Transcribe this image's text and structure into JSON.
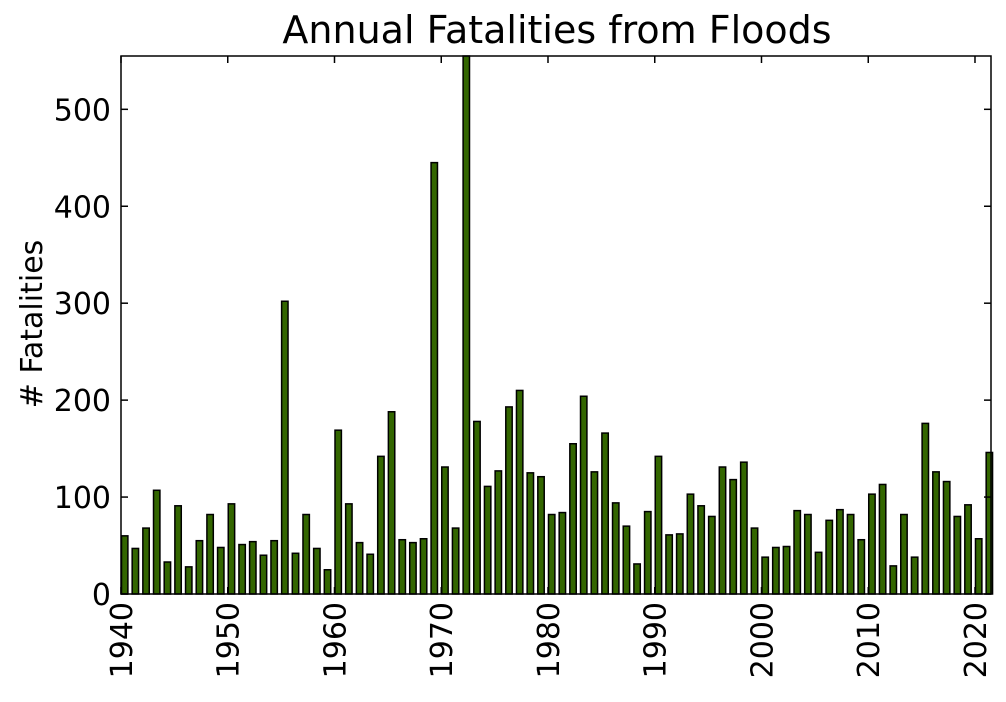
{
  "chart_data": {
    "type": "bar",
    "title": "Annual Fatalities from Floods",
    "xlabel": "",
    "ylabel": "# Fatalities",
    "x": [
      1940,
      1941,
      1942,
      1943,
      1944,
      1945,
      1946,
      1947,
      1948,
      1949,
      1950,
      1951,
      1952,
      1953,
      1954,
      1955,
      1956,
      1957,
      1958,
      1959,
      1960,
      1961,
      1962,
      1963,
      1964,
      1965,
      1966,
      1967,
      1968,
      1969,
      1970,
      1971,
      1972,
      1973,
      1974,
      1975,
      1976,
      1977,
      1978,
      1979,
      1980,
      1981,
      1982,
      1983,
      1984,
      1985,
      1986,
      1987,
      1988,
      1989,
      1990,
      1991,
      1992,
      1993,
      1994,
      1995,
      1996,
      1997,
      1998,
      1999,
      2000,
      2001,
      2002,
      2003,
      2004,
      2005,
      2006,
      2007,
      2008,
      2009,
      2010,
      2011,
      2012,
      2013,
      2014,
      2015,
      2016,
      2017,
      2018,
      2019,
      2020,
      2021
    ],
    "values": [
      60,
      47,
      68,
      107,
      33,
      91,
      28,
      55,
      82,
      48,
      93,
      51,
      54,
      40,
      55,
      302,
      42,
      82,
      47,
      25,
      169,
      93,
      53,
      41,
      142,
      188,
      56,
      53,
      57,
      445,
      131,
      68,
      555,
      178,
      111,
      127,
      193,
      210,
      125,
      121,
      82,
      84,
      155,
      204,
      126,
      166,
      94,
      70,
      31,
      85,
      142,
      61,
      62,
      103,
      91,
      80,
      131,
      118,
      136,
      68,
      38,
      48,
      49,
      86,
      82,
      43,
      76,
      87,
      82,
      56,
      103,
      113,
      29,
      82,
      38,
      176,
      126,
      116,
      80,
      92,
      57,
      146
    ],
    "xlim": [
      1940,
      2021.5
    ],
    "ylim": [
      0,
      555
    ],
    "x_ticks": [
      1940,
      1950,
      1960,
      1970,
      1980,
      1990,
      2000,
      2010,
      2020
    ],
    "y_ticks": [
      0,
      100,
      200,
      300,
      400,
      500
    ],
    "bar_color": "#336600",
    "grid": false
  }
}
